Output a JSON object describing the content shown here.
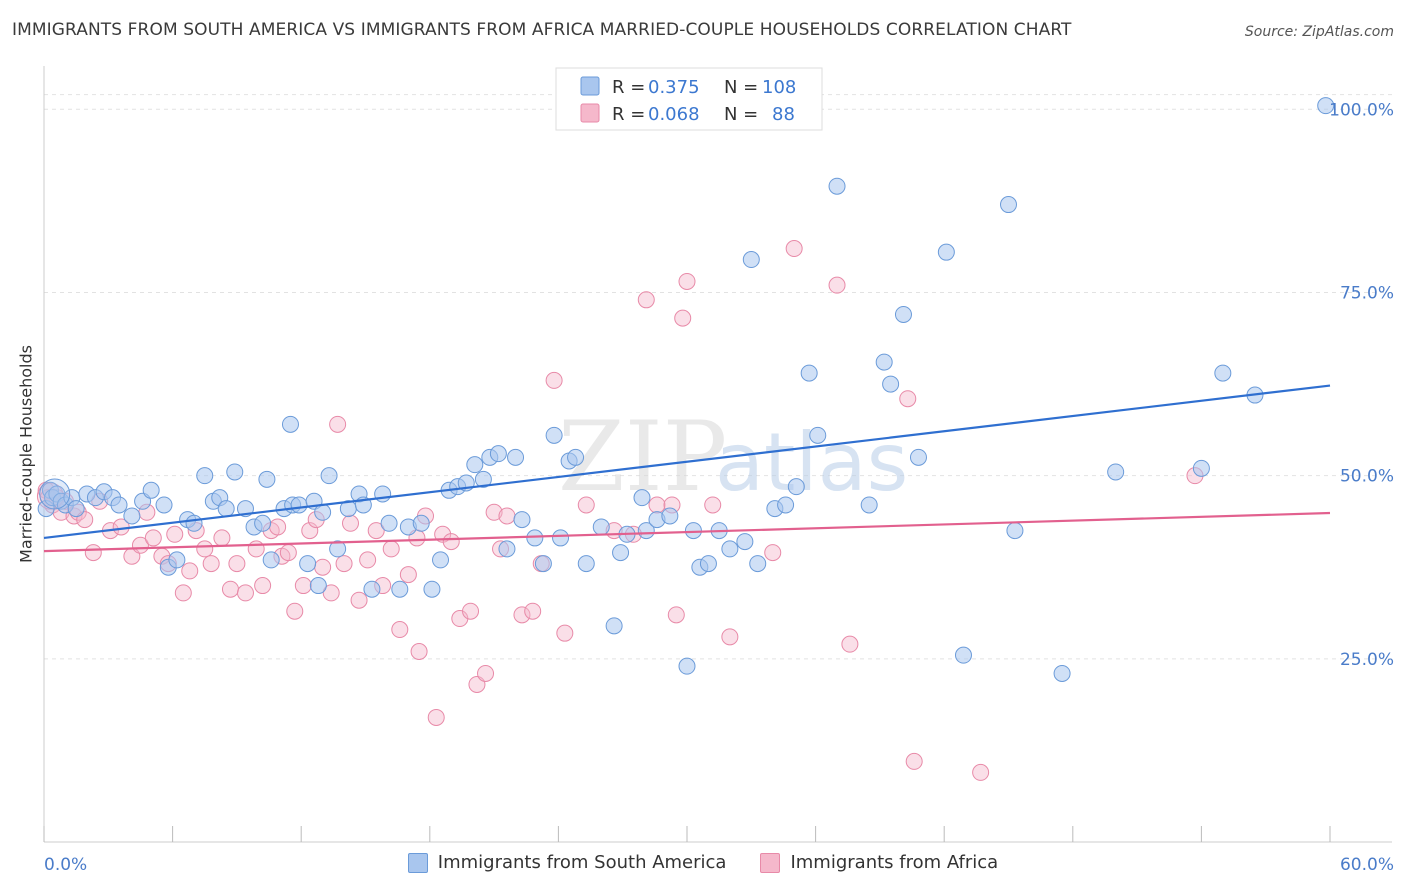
{
  "title": "IMMIGRANTS FROM SOUTH AMERICA VS IMMIGRANTS FROM AFRICA MARRIED-COUPLE HOUSEHOLDS CORRELATION CHART",
  "source": "Source: ZipAtlas.com",
  "watermark": {
    "zip": "ZIP",
    "atlas": "atlas"
  },
  "legend_box": [
    {
      "r_label": "R =",
      "r_value": "0.375",
      "n_label": "N =",
      "n_value": "108"
    },
    {
      "r_label": "R =",
      "r_value": "0.068",
      "n_label": "N =",
      "n_value": "88"
    }
  ],
  "colors": {
    "blue_fill": "#a9c6ee",
    "blue_stroke": "#6b9bd9",
    "blue_line": "#2f6fd0",
    "pink_fill": "#f5b8cb",
    "pink_stroke": "#e88aa8",
    "pink_line": "#e2608e",
    "axis_text": "#4a7cc9",
    "grid": "#dddddd"
  },
  "chart_data": {
    "type": "scatter",
    "title": "IMMIGRANTS FROM SOUTH AMERICA VS IMMIGRANTS FROM AFRICA MARRIED-COUPLE HOUSEHOLDS CORRELATION CHART",
    "xlabel": "",
    "ylabel": "Married-couple Households",
    "xlim": [
      0,
      60
    ],
    "ylim": [
      0,
      104
    ],
    "x_tick_labels": [
      "0.0%",
      "60.0%"
    ],
    "y_tick_labels": [
      "25.0%",
      "50.0%",
      "75.0%",
      "100.0%"
    ],
    "y_ticks": [
      25,
      50,
      75,
      100
    ],
    "grid": true,
    "legend_position": "bottom-center",
    "series": [
      {
        "name": "Immigrants from South America",
        "color": "#a9c6ee",
        "r": 0.375,
        "n": 108,
        "trend": [
          [
            0,
            41.5
          ],
          [
            60,
            62.3
          ]
        ],
        "points": [
          [
            0.1,
            45.5
          ],
          [
            0.3,
            48
          ],
          [
            0.4,
            47
          ],
          [
            0.6,
            47.5
          ],
          [
            0.8,
            46.5
          ],
          [
            1.0,
            46
          ],
          [
            1.3,
            47
          ],
          [
            1.5,
            45.5
          ],
          [
            2.0,
            47.5
          ],
          [
            2.4,
            47
          ],
          [
            2.8,
            47.8
          ],
          [
            3.2,
            47
          ],
          [
            3.5,
            46
          ],
          [
            4.1,
            44.5
          ],
          [
            4.6,
            46.5
          ],
          [
            5.0,
            48
          ],
          [
            5.6,
            46
          ],
          [
            5.8,
            37.5
          ],
          [
            6.2,
            38.5
          ],
          [
            6.7,
            44
          ],
          [
            7.0,
            43.5
          ],
          [
            7.5,
            50
          ],
          [
            7.9,
            46.5
          ],
          [
            8.2,
            47
          ],
          [
            8.5,
            45.5
          ],
          [
            8.9,
            50.5
          ],
          [
            9.4,
            45.5
          ],
          [
            9.8,
            43
          ],
          [
            10.2,
            43.5
          ],
          [
            10.4,
            49.5
          ],
          [
            10.6,
            38.5
          ],
          [
            11.2,
            45.5
          ],
          [
            11.5,
            57
          ],
          [
            11.6,
            46
          ],
          [
            11.9,
            46
          ],
          [
            12.3,
            38
          ],
          [
            12.6,
            46.5
          ],
          [
            12.8,
            35
          ],
          [
            13.0,
            45
          ],
          [
            13.3,
            50
          ],
          [
            13.7,
            40
          ],
          [
            14.2,
            45.5
          ],
          [
            14.7,
            47.5
          ],
          [
            14.9,
            46
          ],
          [
            15.3,
            34.5
          ],
          [
            15.8,
            47.5
          ],
          [
            16.1,
            43.5
          ],
          [
            16.6,
            34.5
          ],
          [
            17.0,
            43
          ],
          [
            17.6,
            43.5
          ],
          [
            18.1,
            34.5
          ],
          [
            18.5,
            38.5
          ],
          [
            18.9,
            48
          ],
          [
            19.3,
            48.5
          ],
          [
            19.7,
            49
          ],
          [
            20.1,
            51.5
          ],
          [
            20.5,
            49.5
          ],
          [
            20.8,
            52.5
          ],
          [
            21.2,
            53
          ],
          [
            21.6,
            40
          ],
          [
            22.0,
            52.5
          ],
          [
            22.3,
            44
          ],
          [
            22.9,
            41.5
          ],
          [
            23.3,
            38
          ],
          [
            23.8,
            55.5
          ],
          [
            24.1,
            41.5
          ],
          [
            24.5,
            52
          ],
          [
            24.8,
            52.5
          ],
          [
            25.3,
            38
          ],
          [
            26.0,
            43
          ],
          [
            26.6,
            29.5
          ],
          [
            26.9,
            39.5
          ],
          [
            27.2,
            42
          ],
          [
            27.9,
            47
          ],
          [
            28.1,
            42.5
          ],
          [
            28.6,
            44
          ],
          [
            29.2,
            44.5
          ],
          [
            30.0,
            24
          ],
          [
            30.3,
            42.5
          ],
          [
            30.6,
            37.5
          ],
          [
            31.0,
            38
          ],
          [
            31.5,
            42.5
          ],
          [
            32.0,
            40
          ],
          [
            32.7,
            41
          ],
          [
            33.0,
            79.5
          ],
          [
            33.3,
            38
          ],
          [
            34.1,
            45.5
          ],
          [
            34.6,
            46
          ],
          [
            35.1,
            48.5
          ],
          [
            35.7,
            64
          ],
          [
            36.1,
            55.5
          ],
          [
            37.0,
            89.5
          ],
          [
            38.5,
            46
          ],
          [
            39.2,
            65.5
          ],
          [
            39.5,
            62.5
          ],
          [
            40.1,
            72
          ],
          [
            40.8,
            52.5
          ],
          [
            42.1,
            80.5
          ],
          [
            42.9,
            25.5
          ],
          [
            45.0,
            87
          ],
          [
            45.3,
            42.5
          ],
          [
            47.5,
            23
          ],
          [
            50.0,
            50.5
          ],
          [
            54.0,
            51
          ],
          [
            55.0,
            64
          ],
          [
            56.5,
            61
          ],
          [
            59.8,
            100.5
          ]
        ]
      },
      {
        "name": "Immigrants from Africa",
        "color": "#f5b8cb",
        "r": 0.068,
        "n": 88,
        "trend": [
          [
            0,
            39.7
          ],
          [
            60,
            44.9
          ]
        ],
        "points": [
          [
            0.1,
            48
          ],
          [
            0.2,
            47
          ],
          [
            0.4,
            46
          ],
          [
            0.6,
            47
          ],
          [
            0.8,
            45
          ],
          [
            1.0,
            46.5
          ],
          [
            1.4,
            44.5
          ],
          [
            1.6,
            45
          ],
          [
            1.9,
            44
          ],
          [
            2.3,
            39.5
          ],
          [
            2.6,
            46.5
          ],
          [
            3.1,
            42.5
          ],
          [
            3.6,
            43
          ],
          [
            4.1,
            39
          ],
          [
            4.5,
            40.5
          ],
          [
            4.8,
            45
          ],
          [
            5.1,
            41.5
          ],
          [
            5.5,
            39
          ],
          [
            5.8,
            38
          ],
          [
            6.1,
            42
          ],
          [
            6.5,
            34
          ],
          [
            6.8,
            37
          ],
          [
            7.1,
            42.5
          ],
          [
            7.5,
            40
          ],
          [
            7.8,
            38
          ],
          [
            8.3,
            41.5
          ],
          [
            8.7,
            34.5
          ],
          [
            9.0,
            38
          ],
          [
            9.4,
            34
          ],
          [
            9.9,
            40
          ],
          [
            10.2,
            35
          ],
          [
            10.6,
            42.5
          ],
          [
            10.9,
            43
          ],
          [
            11.1,
            39
          ],
          [
            11.4,
            39.5
          ],
          [
            11.7,
            31.5
          ],
          [
            12.1,
            35
          ],
          [
            12.4,
            42.5
          ],
          [
            12.7,
            44
          ],
          [
            13.0,
            37.5
          ],
          [
            13.4,
            34
          ],
          [
            13.7,
            57
          ],
          [
            14.0,
            38
          ],
          [
            14.3,
            43.5
          ],
          [
            14.7,
            33
          ],
          [
            15.1,
            38.5
          ],
          [
            15.5,
            42.5
          ],
          [
            15.8,
            35
          ],
          [
            16.2,
            40
          ],
          [
            16.6,
            29
          ],
          [
            17.0,
            36.5
          ],
          [
            17.4,
            41.5
          ],
          [
            17.8,
            44.5
          ],
          [
            17.5,
            26
          ],
          [
            18.3,
            17
          ],
          [
            18.6,
            42
          ],
          [
            19.0,
            41
          ],
          [
            19.4,
            30.5
          ],
          [
            19.9,
            31.5
          ],
          [
            20.2,
            21.5
          ],
          [
            20.6,
            23
          ],
          [
            21.0,
            45
          ],
          [
            21.3,
            40
          ],
          [
            21.6,
            44.5
          ],
          [
            22.3,
            31
          ],
          [
            22.8,
            31.5
          ],
          [
            23.2,
            38
          ],
          [
            23.8,
            63
          ],
          [
            24.3,
            28.5
          ],
          [
            25.3,
            46
          ],
          [
            26.6,
            42.5
          ],
          [
            27.5,
            42
          ],
          [
            28.1,
            74
          ],
          [
            28.6,
            46
          ],
          [
            29.3,
            46
          ],
          [
            29.5,
            31
          ],
          [
            29.8,
            71.5
          ],
          [
            30.0,
            76.5
          ],
          [
            31.2,
            46
          ],
          [
            32.0,
            28
          ],
          [
            34.0,
            39.5
          ],
          [
            35.0,
            81
          ],
          [
            37.0,
            76
          ],
          [
            37.6,
            27
          ],
          [
            40.3,
            60.5
          ],
          [
            40.6,
            11
          ],
          [
            43.7,
            9.5
          ],
          [
            53.7,
            50
          ]
        ]
      }
    ]
  },
  "x_axis_labels": {
    "left": "0.0%",
    "right": "60.0%"
  }
}
